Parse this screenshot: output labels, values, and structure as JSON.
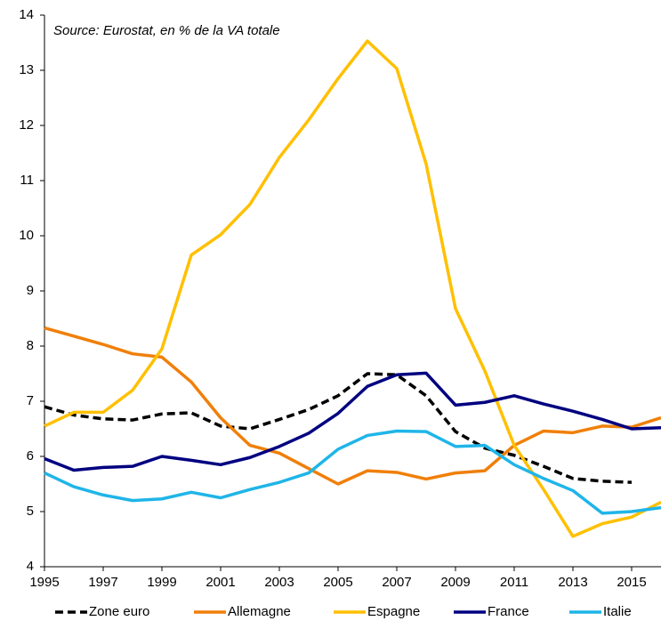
{
  "chart_data": {
    "type": "line",
    "annotation": "Source: Eurostat, en % de la VA totale",
    "x": [
      1995,
      1996,
      1997,
      1998,
      1999,
      2000,
      2001,
      2002,
      2003,
      2004,
      2005,
      2006,
      2007,
      2008,
      2009,
      2010,
      2011,
      2012,
      2013,
      2014,
      2015,
      2016
    ],
    "xlim": [
      1995,
      2016
    ],
    "xticks": [
      1995,
      1997,
      1999,
      2001,
      2003,
      2005,
      2007,
      2009,
      2011,
      2013,
      2015
    ],
    "ylim": [
      4,
      14
    ],
    "yticks": [
      4,
      5,
      6,
      7,
      8,
      9,
      10,
      11,
      12,
      13,
      14
    ],
    "grid": false,
    "legend": "bottom",
    "series": [
      {
        "name": "Zone euro",
        "color": "#000000",
        "dashed": true,
        "values": [
          6.9,
          6.75,
          6.68,
          6.66,
          6.77,
          6.79,
          6.55,
          6.5,
          6.67,
          6.85,
          7.1,
          7.5,
          7.48,
          7.1,
          6.45,
          6.15,
          6.02,
          5.82,
          5.6,
          5.55,
          5.53,
          null
        ]
      },
      {
        "name": "Allemagne",
        "color": "#f07f09",
        "dashed": false,
        "values": [
          8.33,
          8.18,
          8.03,
          7.86,
          7.8,
          7.35,
          6.7,
          6.2,
          6.06,
          5.78,
          5.5,
          5.74,
          5.71,
          5.59,
          5.7,
          5.74,
          6.2,
          6.46,
          6.43,
          6.55,
          6.53,
          6.7
        ]
      },
      {
        "name": "Espagne",
        "color": "#ffc000",
        "dashed": false,
        "values": [
          6.55,
          6.8,
          6.8,
          7.2,
          7.95,
          9.65,
          10.02,
          10.57,
          11.42,
          12.1,
          12.85,
          13.53,
          13.03,
          11.3,
          8.68,
          7.55,
          6.2,
          5.4,
          4.55,
          4.78,
          4.9,
          5.17
        ]
      },
      {
        "name": "France",
        "color": "#000080",
        "dashed": false,
        "values": [
          5.96,
          5.75,
          5.8,
          5.82,
          6.0,
          5.93,
          5.85,
          5.98,
          6.18,
          6.42,
          6.78,
          7.27,
          7.48,
          7.51,
          6.93,
          6.98,
          7.1,
          6.95,
          6.82,
          6.67,
          6.5,
          6.52
        ]
      },
      {
        "name": "Italie",
        "color": "#1fb5e8",
        "dashed": false,
        "values": [
          5.7,
          5.45,
          5.3,
          5.2,
          5.23,
          5.35,
          5.25,
          5.4,
          5.53,
          5.7,
          6.13,
          6.38,
          6.46,
          6.45,
          6.18,
          6.2,
          5.85,
          5.6,
          5.38,
          4.97,
          5.0,
          5.07
        ]
      }
    ]
  }
}
